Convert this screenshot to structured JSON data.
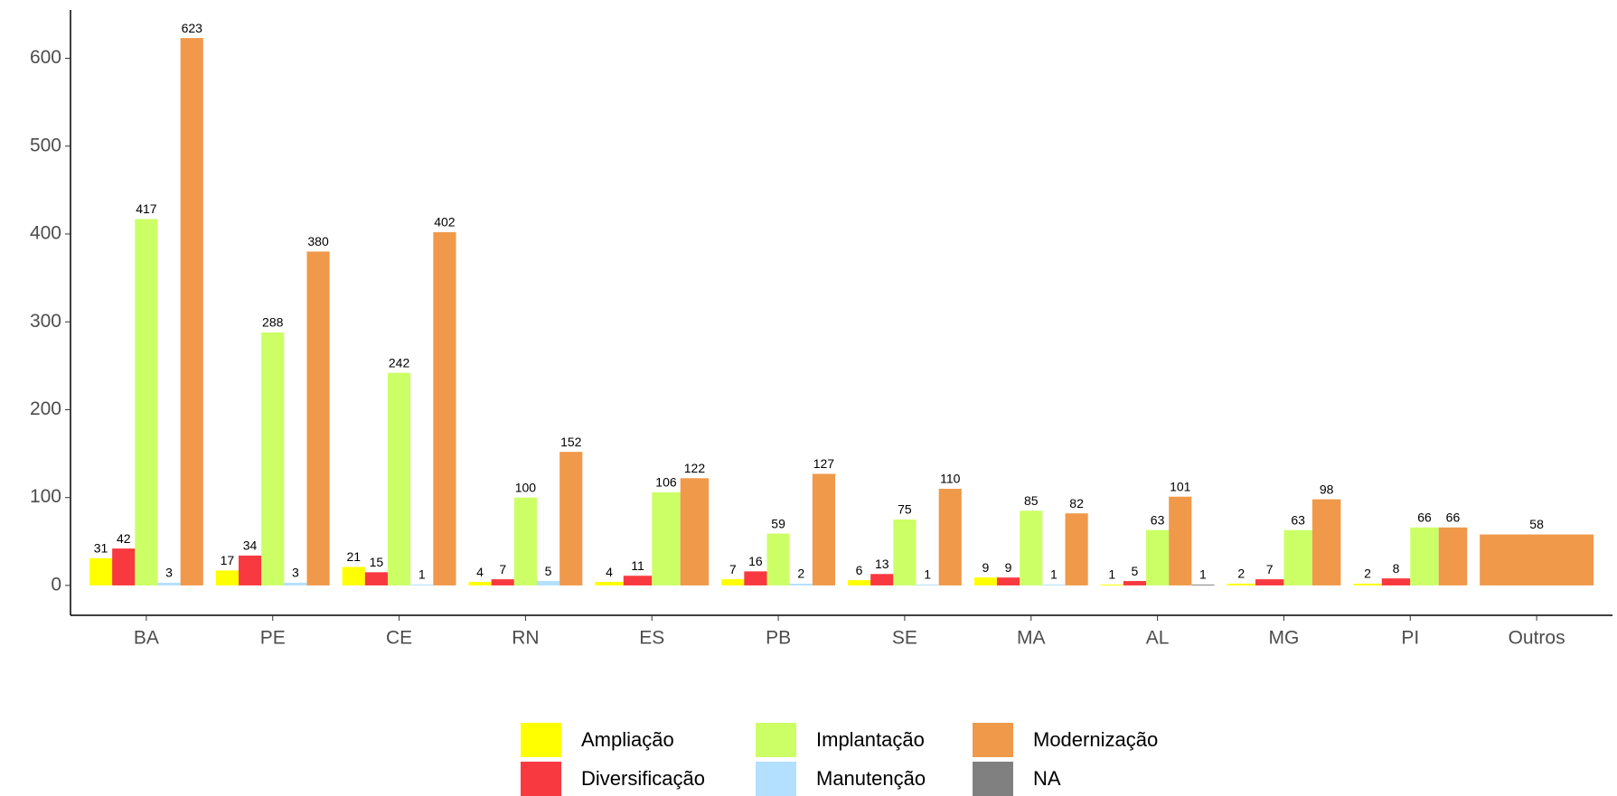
{
  "chart_data": {
    "type": "bar",
    "categories": [
      "BA",
      "PE",
      "CE",
      "RN",
      "ES",
      "PB",
      "SE",
      "MA",
      "AL",
      "MG",
      "PI",
      "Outros"
    ],
    "series": [
      {
        "name": "Ampliação",
        "color": "#ffff00",
        "values": [
          31,
          17,
          21,
          4,
          4,
          7,
          6,
          9,
          1,
          2,
          2,
          null
        ]
      },
      {
        "name": "Diversificação",
        "color": "#f8393f",
        "values": [
          42,
          34,
          15,
          7,
          11,
          16,
          13,
          9,
          5,
          7,
          8,
          null
        ]
      },
      {
        "name": "Implantação",
        "color": "#ccff66",
        "values": [
          417,
          288,
          242,
          100,
          106,
          59,
          75,
          85,
          63,
          63,
          66,
          null
        ]
      },
      {
        "name": "Manutenção",
        "color": "#b3e0ff",
        "values": [
          3,
          3,
          1,
          5,
          null,
          2,
          1,
          1,
          null,
          null,
          null,
          null
        ]
      },
      {
        "name": "Modernização",
        "color": "#f0994a",
        "values": [
          623,
          380,
          402,
          152,
          122,
          127,
          110,
          82,
          101,
          98,
          66,
          58
        ]
      },
      {
        "name": "NA",
        "color": "#808080",
        "values": [
          null,
          null,
          null,
          null,
          null,
          null,
          null,
          null,
          1,
          null,
          null,
          null
        ]
      }
    ],
    "ylim": [
      -34,
      655
    ],
    "yticks": [
      0,
      100,
      200,
      300,
      400,
      500,
      600
    ]
  }
}
